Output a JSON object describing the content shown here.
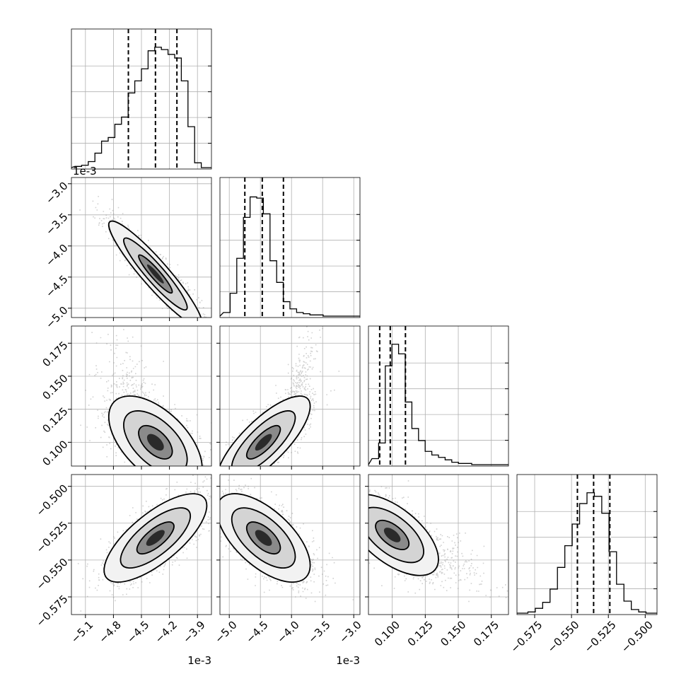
{
  "chart_data": {
    "type": "corner",
    "n_params": 4,
    "quantile_lines": "dashed",
    "grid": true,
    "params": [
      {
        "index": 0,
        "scale_text": "1e-3",
        "range": [
          -5.25,
          -3.75
        ],
        "ticks": [
          -5.1,
          -4.8,
          -4.5,
          -4.2,
          -3.9
        ],
        "tick_labels": [
          "−5.1",
          "−4.8",
          "−4.5",
          "−4.2",
          "−3.9"
        ],
        "quantiles": [
          -4.64,
          -4.35,
          -4.12
        ],
        "hist_levels": [
          0.01,
          0.02,
          0.05,
          0.12,
          0.22,
          0.25,
          0.36,
          0.42,
          0.62,
          0.72,
          0.82,
          0.97,
          1.0,
          0.98,
          0.94,
          0.91,
          0.72,
          0.34,
          0.04,
          0.0
        ]
      },
      {
        "index": 1,
        "scale_text": "1e-3",
        "range": [
          -5.15,
          -2.9
        ],
        "ticks": [
          -5.0,
          -4.5,
          -4.0,
          -3.5,
          -3.0
        ],
        "tick_labels": [
          "−5.0",
          "−4.5",
          "−4.0",
          "−3.5",
          "−3.0"
        ],
        "quantiles": [
          -4.75,
          -4.47,
          -4.13
        ],
        "hist_levels": [
          0.03,
          0.19,
          0.48,
          0.82,
          0.99,
          0.98,
          0.85,
          0.46,
          0.28,
          0.12,
          0.06,
          0.03,
          0.02,
          0.01,
          0.01,
          0.0,
          0.0,
          0.0,
          0.0,
          0.0
        ]
      },
      {
        "index": 2,
        "ticks": [
          0.1,
          0.125,
          0.15,
          0.175
        ],
        "tick_labels": [
          "0.100",
          "0.125",
          "0.150",
          "0.175"
        ],
        "range": [
          0.082,
          0.188
        ],
        "quantiles": [
          0.0905,
          0.0985,
          0.11
        ],
        "hist_levels": [
          0.05,
          0.18,
          0.82,
          1.0,
          0.92,
          0.52,
          0.3,
          0.2,
          0.11,
          0.08,
          0.06,
          0.04,
          0.02,
          0.01,
          0.01,
          0.0,
          0.0,
          0.0,
          0.0,
          0.0
        ]
      },
      {
        "index": 3,
        "ticks": [
          -0.575,
          -0.55,
          -0.525,
          -0.5
        ],
        "tick_labels": [
          "−0.575",
          "−0.550",
          "−0.525",
          "−0.500"
        ],
        "range": [
          -0.587,
          -0.492
        ],
        "quantiles": [
          -0.546,
          -0.535,
          -0.524
        ],
        "hist_levels": [
          0.0,
          0.01,
          0.04,
          0.09,
          0.2,
          0.38,
          0.56,
          0.74,
          0.91,
          1.0,
          0.97,
          0.83,
          0.51,
          0.24,
          0.1,
          0.03,
          0.01,
          0.0
        ]
      }
    ],
    "pairs": [
      {
        "row": 1,
        "col": 0,
        "corr": -0.93,
        "mean": [
          -4.35,
          -4.45
        ],
        "sd": [
          0.2,
          0.34
        ],
        "tail": null
      },
      {
        "row": 2,
        "col": 0,
        "corr": -0.55,
        "mean": [
          -4.35,
          0.1
        ],
        "sd": [
          0.2,
          0.014
        ],
        "tail": {
          "mean": [
            -4.6,
            0.135
          ],
          "sd": [
            0.15,
            0.02
          ]
        }
      },
      {
        "row": 2,
        "col": 1,
        "corr": 0.78,
        "mean": [
          -4.45,
          0.1
        ],
        "sd": [
          0.3,
          0.014
        ],
        "tail": {
          "mean": [
            -3.95,
            0.135
          ],
          "sd": [
            0.15,
            0.02
          ]
        }
      },
      {
        "row": 3,
        "col": 0,
        "corr": 0.73,
        "mean": [
          -4.35,
          -0.535
        ],
        "sd": [
          0.22,
          0.012
        ],
        "tail": null
      },
      {
        "row": 3,
        "col": 1,
        "corr": -0.62,
        "mean": [
          -4.45,
          -0.535
        ],
        "sd": [
          0.3,
          0.012
        ],
        "tail": null
      },
      {
        "row": 3,
        "col": 2,
        "corr": -0.6,
        "mean": [
          0.1,
          -0.533
        ],
        "sd": [
          0.014,
          0.011
        ],
        "tail": {
          "mean": [
            0.13,
            -0.548
          ],
          "sd": [
            0.018,
            0.01
          ]
        }
      }
    ]
  }
}
